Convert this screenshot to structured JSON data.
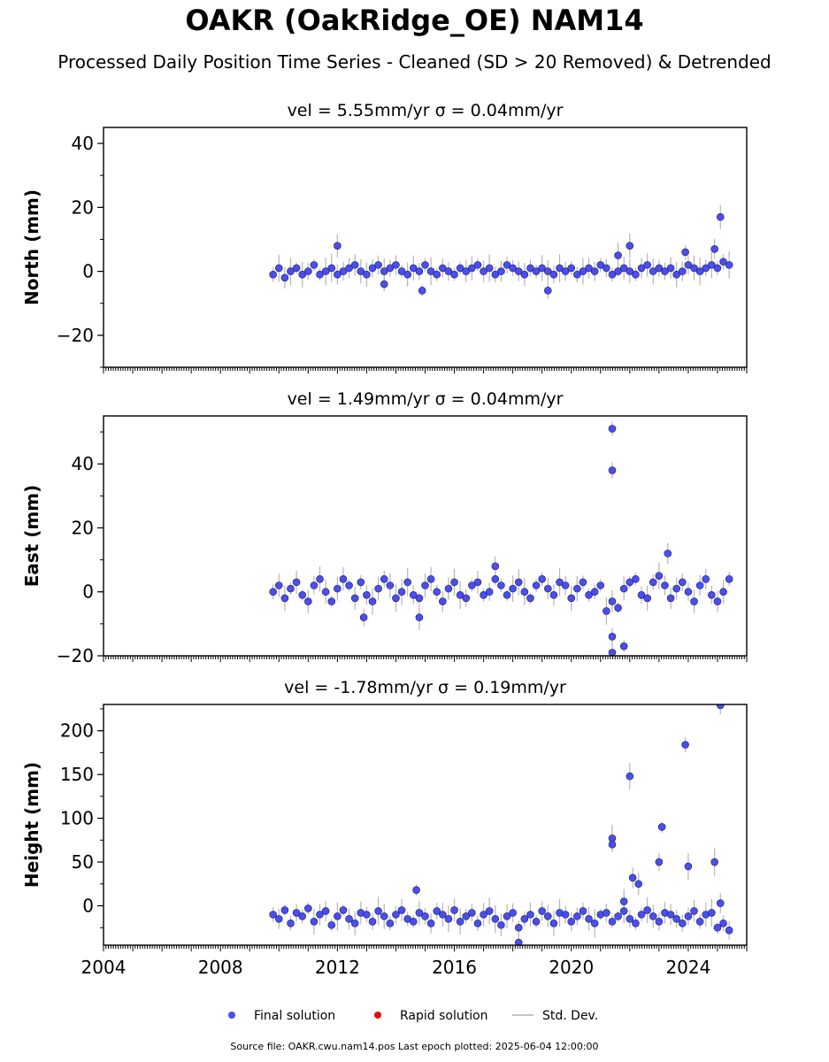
{
  "title": "OAKR (OakRidge_OE) NAM14",
  "subtitle": "Processed Daily Position Time Series - Cleaned (SD > 20 Removed) & Detrended",
  "footer": "Source file: OAKR.cwu.nam14.pos  Last epoch plotted: 2025-06-04 12:00:00",
  "colors": {
    "final": "#4a4ef0",
    "rapid": "#e01010",
    "stddev": "#b4b4b4"
  },
  "chart_data": [
    {
      "type": "scatter",
      "title": "vel = 5.55mm/yr   σ = 0.04mm/yr",
      "ylabel": "North (mm)",
      "ylim": [
        -30,
        45
      ],
      "xlim": [
        2004,
        2026
      ],
      "yticks": [
        -20,
        0,
        20,
        40
      ],
      "ytick_labels": [
        "−20",
        "0",
        "20",
        "40"
      ],
      "series": [
        {
          "name": "Final solution",
          "x": [
            2009.8,
            2010.0,
            2010.2,
            2010.4,
            2010.6,
            2010.8,
            2011.0,
            2011.2,
            2011.4,
            2011.6,
            2011.8,
            2012.0,
            2012.2,
            2012.4,
            2012.6,
            2012.8,
            2013.0,
            2013.2,
            2013.4,
            2013.6,
            2013.8,
            2014.0,
            2014.2,
            2014.4,
            2014.6,
            2014.8,
            2015.0,
            2015.2,
            2015.4,
            2015.6,
            2015.8,
            2016.0,
            2016.2,
            2016.4,
            2016.6,
            2016.8,
            2017.0,
            2017.2,
            2017.4,
            2017.6,
            2017.8,
            2018.0,
            2018.2,
            2018.4,
            2018.6,
            2018.8,
            2019.0,
            2019.2,
            2019.4,
            2019.6,
            2019.8,
            2020.0,
            2020.2,
            2020.4,
            2020.6,
            2020.8,
            2021.0,
            2021.2,
            2021.4,
            2021.6,
            2021.8,
            2022.0,
            2022.2,
            2022.4,
            2022.6,
            2022.8,
            2023.0,
            2023.2,
            2023.4,
            2023.6,
            2023.8,
            2024.0,
            2024.2,
            2024.4,
            2024.6,
            2024.8,
            2025.0,
            2025.2,
            2025.4,
            2012.0,
            2013.6,
            2014.9,
            2019.2,
            2021.6,
            2022.0,
            2023.9,
            2024.9,
            2025.1
          ],
          "y": [
            -1,
            1,
            -2,
            0,
            1,
            -1,
            0,
            2,
            -1,
            0,
            1,
            -1,
            0,
            1,
            2,
            0,
            -1,
            1,
            2,
            0,
            1,
            2,
            0,
            -1,
            1,
            0,
            2,
            0,
            -1,
            1,
            0,
            -1,
            1,
            0,
            1,
            2,
            0,
            1,
            -1,
            0,
            2,
            1,
            0,
            -1,
            1,
            0,
            1,
            0,
            -1,
            1,
            0,
            1,
            -1,
            0,
            1,
            0,
            2,
            1,
            -1,
            0,
            1,
            0,
            -1,
            1,
            2,
            0,
            1,
            0,
            1,
            -1,
            0,
            2,
            1,
            0,
            1,
            2,
            1,
            3,
            2,
            8,
            -4,
            -6,
            -6,
            5,
            8,
            6,
            7,
            17
          ]
        },
        {
          "name": "Rapid solution",
          "x": [],
          "y": []
        }
      ]
    },
    {
      "type": "scatter",
      "title": "vel = 1.49mm/yr   σ = 0.04mm/yr",
      "ylabel": "East (mm)",
      "ylim": [
        -20,
        55
      ],
      "xlim": [
        2004,
        2026
      ],
      "yticks": [
        -20,
        0,
        20,
        40
      ],
      "ytick_labels": [
        "−20",
        "0",
        "20",
        "40"
      ],
      "series": [
        {
          "name": "Final solution",
          "x": [
            2009.8,
            2010.0,
            2010.2,
            2010.4,
            2010.6,
            2010.8,
            2011.0,
            2011.2,
            2011.4,
            2011.6,
            2011.8,
            2012.0,
            2012.2,
            2012.4,
            2012.6,
            2012.8,
            2013.0,
            2013.2,
            2013.4,
            2013.6,
            2013.8,
            2014.0,
            2014.2,
            2014.4,
            2014.6,
            2014.8,
            2015.0,
            2015.2,
            2015.4,
            2015.6,
            2015.8,
            2016.0,
            2016.2,
            2016.4,
            2016.6,
            2016.8,
            2017.0,
            2017.2,
            2017.4,
            2017.6,
            2017.8,
            2018.0,
            2018.2,
            2018.4,
            2018.6,
            2018.8,
            2019.0,
            2019.2,
            2019.4,
            2019.6,
            2019.8,
            2020.0,
            2020.2,
            2020.4,
            2020.6,
            2020.8,
            2021.0,
            2021.2,
            2021.4,
            2021.6,
            2021.8,
            2022.0,
            2022.2,
            2022.4,
            2022.6,
            2022.8,
            2023.0,
            2023.2,
            2023.4,
            2023.6,
            2023.8,
            2024.0,
            2024.2,
            2024.4,
            2024.6,
            2024.8,
            2025.0,
            2025.2,
            2025.4,
            2012.9,
            2014.8,
            2017.4,
            2021.4,
            2021.4,
            2021.4,
            2021.4,
            2021.8,
            2023.3
          ],
          "y": [
            0,
            2,
            -2,
            1,
            3,
            -1,
            -3,
            2,
            4,
            0,
            -3,
            1,
            4,
            2,
            -2,
            3,
            -1,
            -3,
            1,
            4,
            2,
            -2,
            0,
            3,
            -1,
            -2,
            2,
            4,
            0,
            -3,
            1,
            3,
            -1,
            -2,
            2,
            3,
            -1,
            0,
            4,
            2,
            -1,
            1,
            3,
            0,
            -2,
            2,
            4,
            1,
            -1,
            3,
            2,
            -2,
            1,
            3,
            -1,
            0,
            2,
            -6,
            -3,
            -5,
            1,
            3,
            4,
            -1,
            -2,
            3,
            5,
            2,
            -2,
            1,
            3,
            0,
            -3,
            2,
            4,
            -1,
            -3,
            0,
            4,
            -8,
            -8,
            8,
            51,
            38,
            -19,
            -14,
            -17,
            12
          ]
        },
        {
          "name": "Rapid solution",
          "x": [],
          "y": []
        }
      ]
    },
    {
      "type": "scatter",
      "title": "vel = -1.78mm/yr   σ = 0.19mm/yr",
      "ylabel": "Height (mm)",
      "ylim": [
        -45,
        230
      ],
      "xlim": [
        2004,
        2026
      ],
      "yticks": [
        0,
        50,
        100,
        150,
        200
      ],
      "ytick_labels": [
        "0",
        "50",
        "100",
        "150",
        "200"
      ],
      "xticks": [
        2004,
        2008,
        2012,
        2016,
        2020,
        2024
      ],
      "series": [
        {
          "name": "Final solution",
          "x": [
            2009.8,
            2010.0,
            2010.2,
            2010.4,
            2010.6,
            2010.8,
            2011.0,
            2011.2,
            2011.4,
            2011.6,
            2011.8,
            2012.0,
            2012.2,
            2012.4,
            2012.6,
            2012.8,
            2013.0,
            2013.2,
            2013.4,
            2013.6,
            2013.8,
            2014.0,
            2014.2,
            2014.4,
            2014.6,
            2014.8,
            2015.0,
            2015.2,
            2015.4,
            2015.6,
            2015.8,
            2016.0,
            2016.2,
            2016.4,
            2016.6,
            2016.8,
            2017.0,
            2017.2,
            2017.4,
            2017.6,
            2017.8,
            2018.0,
            2018.2,
            2018.4,
            2018.6,
            2018.8,
            2019.0,
            2019.2,
            2019.4,
            2019.6,
            2019.8,
            2020.0,
            2020.2,
            2020.4,
            2020.6,
            2020.8,
            2021.0,
            2021.2,
            2021.4,
            2021.6,
            2021.8,
            2022.0,
            2022.2,
            2022.4,
            2022.6,
            2022.8,
            2023.0,
            2023.2,
            2023.4,
            2023.6,
            2023.8,
            2024.0,
            2024.2,
            2024.4,
            2024.6,
            2024.8,
            2025.0,
            2025.2,
            2025.4,
            2014.7,
            2018.2,
            2021.4,
            2021.4,
            2021.8,
            2022.0,
            2022.1,
            2022.3,
            2023.0,
            2023.1,
            2023.9,
            2024.0,
            2024.9,
            2025.1,
            2025.1
          ],
          "y": [
            -10,
            -15,
            -5,
            -20,
            -8,
            -12,
            -3,
            -18,
            -10,
            -6,
            -22,
            -12,
            -5,
            -15,
            -20,
            -8,
            -10,
            -18,
            -6,
            -12,
            -20,
            -10,
            -5,
            -15,
            -18,
            -8,
            -12,
            -20,
            -6,
            -10,
            -15,
            -5,
            -18,
            -12,
            -8,
            -20,
            -10,
            -6,
            -15,
            -22,
            -12,
            -8,
            -25,
            -15,
            -10,
            -18,
            -6,
            -12,
            -20,
            -8,
            -10,
            -18,
            -12,
            -6,
            -15,
            -20,
            -10,
            -8,
            -18,
            -12,
            -6,
            -15,
            -20,
            -10,
            -5,
            -12,
            -18,
            -8,
            -10,
            -15,
            -20,
            -12,
            -6,
            -18,
            -10,
            -8,
            -25,
            -20,
            -28,
            18,
            -42,
            77,
            70,
            5,
            148,
            32,
            25,
            50,
            90,
            184,
            45,
            50,
            229,
            3
          ]
        },
        {
          "name": "Rapid solution",
          "x": [],
          "y": []
        }
      ]
    }
  ],
  "legend": {
    "position": "bottom-center",
    "items": [
      {
        "label": "Final solution",
        "marker": "circle-blue"
      },
      {
        "label": "Rapid solution",
        "marker": "circle-red"
      },
      {
        "label": "Std. Dev.",
        "marker": "line-gray"
      }
    ]
  }
}
